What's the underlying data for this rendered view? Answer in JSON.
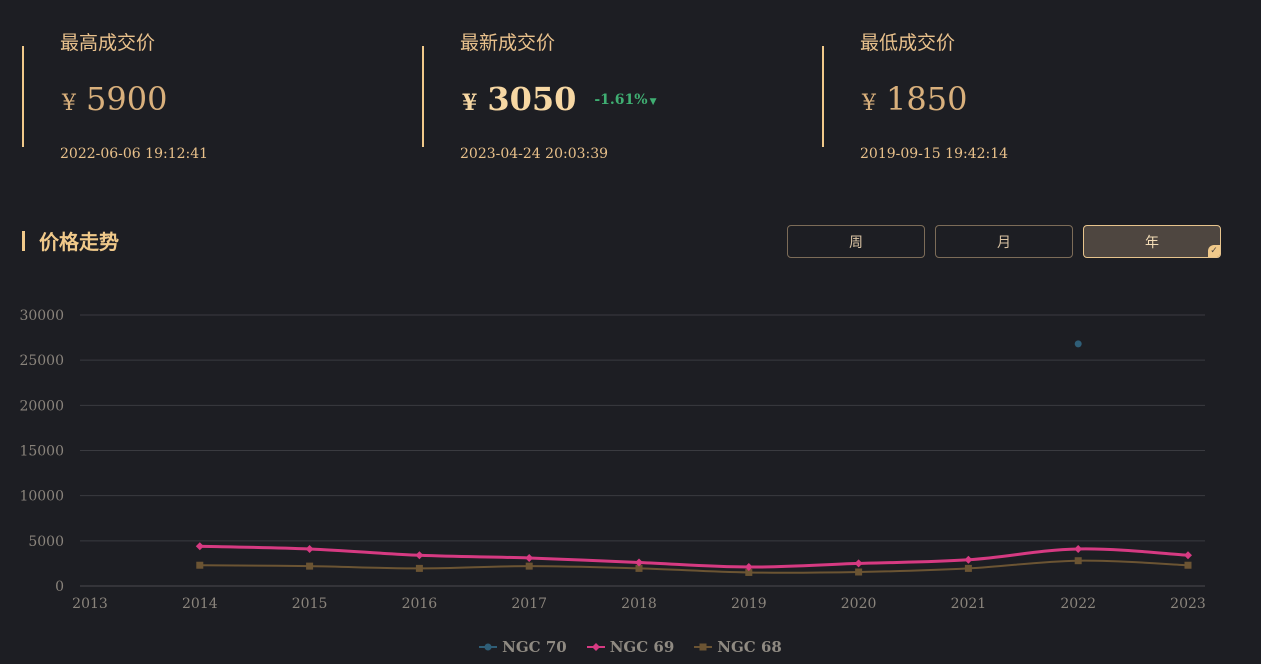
{
  "stats": {
    "highest": {
      "label": "最高成交价",
      "currency": "¥",
      "price": "5900",
      "date": "2022-06-06 19:12:41"
    },
    "latest": {
      "label": "最新成交价",
      "currency": "¥",
      "price": "3050",
      "change": "-1.61%",
      "change_icon": "triangle-down-icon",
      "date": "2023-04-24 20:03:39"
    },
    "lowest": {
      "label": "最低成交价",
      "currency": "¥",
      "price": "1850",
      "date": "2019-09-15 19:42:14"
    }
  },
  "section": {
    "title": "价格走势"
  },
  "periods": [
    {
      "label": "周",
      "active": false
    },
    {
      "label": "月",
      "active": false
    },
    {
      "label": "年",
      "active": true
    }
  ],
  "colors": {
    "accent": "#f0c98a",
    "ngc70": "#2f5e77",
    "ngc69": "#d63a82",
    "ngc68": "#6b5433"
  },
  "chart_data": {
    "type": "line",
    "x": [
      "2013",
      "2014",
      "2015",
      "2016",
      "2017",
      "2018",
      "2019",
      "2020",
      "2021",
      "2022",
      "2023"
    ],
    "ylim": [
      0,
      30000
    ],
    "yticks": [
      "0",
      "5000",
      "10000",
      "15000",
      "20000",
      "25000",
      "30000"
    ],
    "grid": true,
    "legend": "bottom-center",
    "series": [
      {
        "name": "NGC 70",
        "color": "#2f5e77",
        "marker": "circle",
        "values": [
          null,
          null,
          null,
          null,
          null,
          null,
          null,
          null,
          null,
          26800,
          null
        ]
      },
      {
        "name": "NGC 69",
        "color": "#d63a82",
        "marker": "diamond",
        "values": [
          null,
          4400,
          4100,
          3400,
          3100,
          2600,
          2100,
          2500,
          2900,
          4100,
          3400
        ]
      },
      {
        "name": "NGC 68",
        "color": "#6b5433",
        "marker": "square",
        "values": [
          null,
          2300,
          2200,
          1950,
          2200,
          1950,
          1500,
          1550,
          1950,
          2800,
          2300
        ]
      }
    ]
  }
}
